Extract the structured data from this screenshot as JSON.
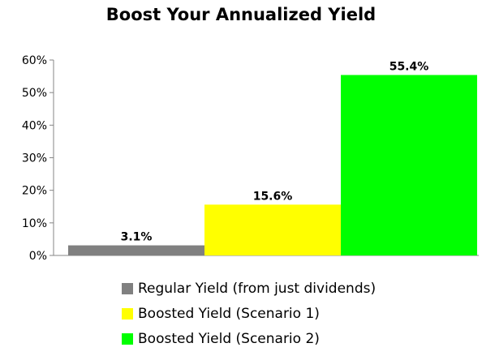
{
  "chart_data": {
    "type": "bar",
    "title": "Boost Your Annualized Yield",
    "xlabel": "",
    "ylabel": "",
    "ylim": [
      0,
      60
    ],
    "yticks": [
      0,
      10,
      20,
      30,
      40,
      50,
      60
    ],
    "y_tick_format": "percent",
    "grid": false,
    "legend_position": "bottom",
    "series": [
      {
        "name": "Regular Yield (from just dividends)",
        "value": 3.1,
        "label": "3.1%",
        "color": "#808080"
      },
      {
        "name": "Boosted Yield (Scenario 1)",
        "value": 15.6,
        "label": "15.6%",
        "color": "#ffff00"
      },
      {
        "name": "Boosted Yield (Scenario 2)",
        "value": 55.4,
        "label": "55.4%",
        "color": "#00ff00"
      }
    ]
  }
}
